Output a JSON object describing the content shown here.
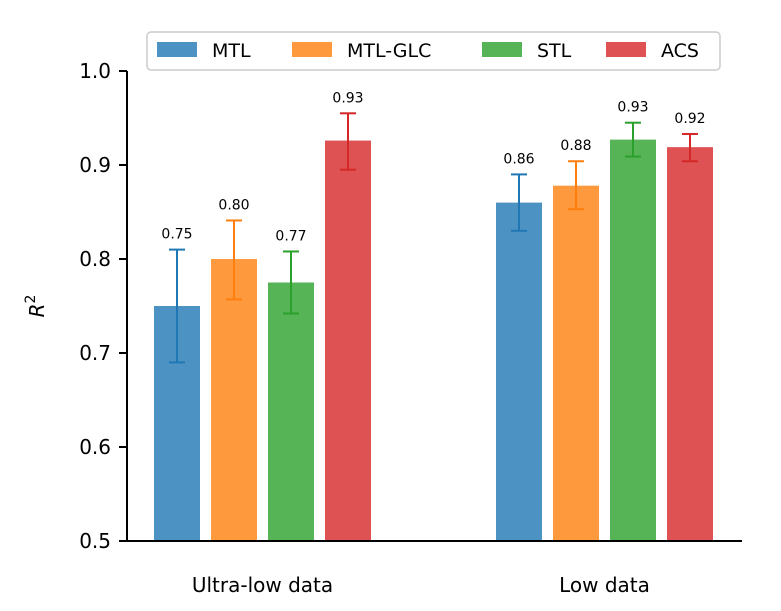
{
  "chart_data": {
    "type": "bar",
    "title": "",
    "xlabel": "",
    "ylabel": "R^2",
    "ylabel_base": "R",
    "ylabel_sup": "2",
    "ylim": [
      0.5,
      1.0
    ],
    "yticks": [
      "0.5",
      "0.6",
      "0.7",
      "0.8",
      "0.9",
      "1.0"
    ],
    "categories": [
      "Ultra-low data",
      "Low data"
    ],
    "legend": {
      "placement": "top"
    },
    "grid": false,
    "series": [
      {
        "name": "MTL",
        "color": "#1f77b4",
        "values": [
          0.75,
          0.86
        ],
        "error_low": [
          0.69,
          0.83
        ],
        "error_high": [
          0.81,
          0.89
        ],
        "labels": [
          "0.75",
          "0.86"
        ]
      },
      {
        "name": "MTL-GLC",
        "color": "#ff7f0e",
        "values": [
          0.8,
          0.878
        ],
        "error_low": [
          0.757,
          0.853
        ],
        "error_high": [
          0.841,
          0.904
        ],
        "labels": [
          "0.80",
          "0.88"
        ]
      },
      {
        "name": "STL",
        "color": "#2ca02c",
        "values": [
          0.775,
          0.927
        ],
        "error_low": [
          0.742,
          0.909
        ],
        "error_high": [
          0.808,
          0.945
        ],
        "labels": [
          "0.77",
          "0.93"
        ]
      },
      {
        "name": "ACS",
        "color": "#d62728",
        "values": [
          0.926,
          0.919
        ],
        "error_low": [
          0.895,
          0.904
        ],
        "error_high": [
          0.955,
          0.933
        ],
        "labels": [
          "0.93",
          "0.92"
        ]
      }
    ]
  }
}
